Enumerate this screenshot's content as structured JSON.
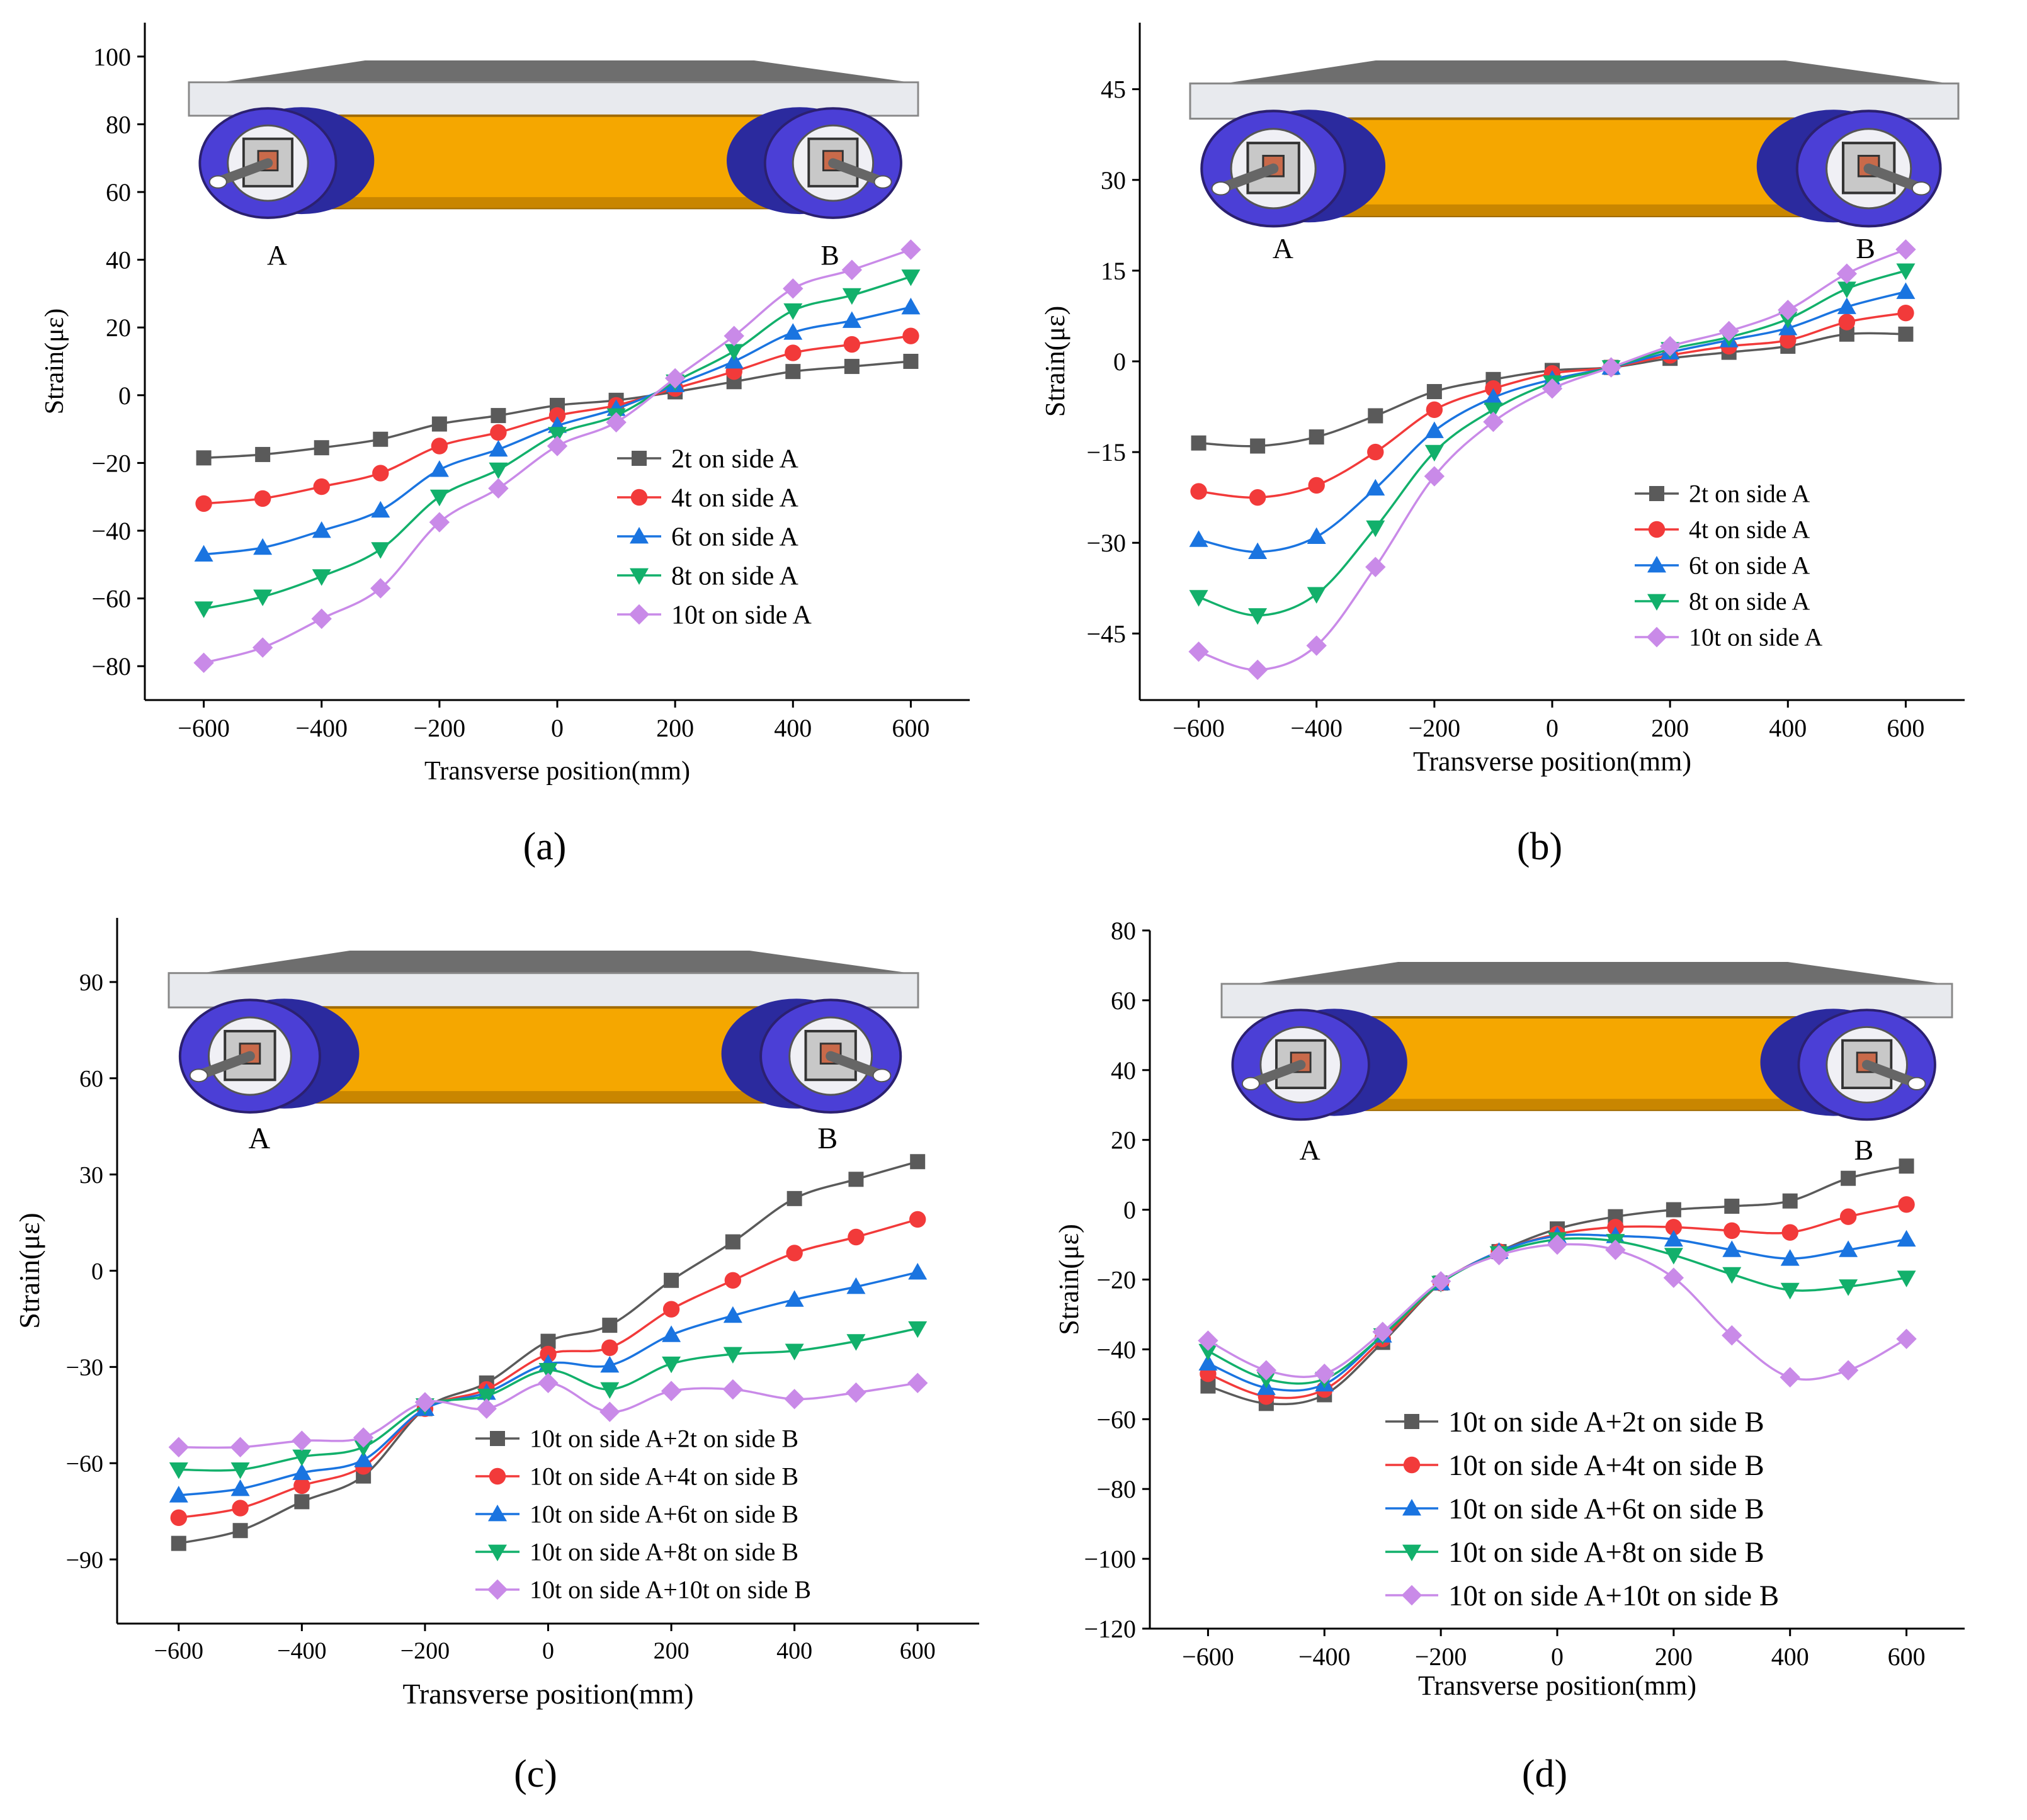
{
  "colors": {
    "s1": "#5a5a5a",
    "s2": "#f23a3a",
    "s3": "#1a74e0",
    "s4": "#12b06b",
    "s5": "#c98ae8",
    "axis": "#000000",
    "plate": "#e8eaee",
    "beam": "#f5a700",
    "wheel_outer": "#4b3fd6",
    "wheel_inner": "#2b2a9e",
    "hub": "#c8c8c8"
  },
  "chart_data": [
    {
      "type": "line",
      "panel_label": "(a)",
      "xlabel": "Transverse position(mm)",
      "ylabel": "Strain(με)",
      "xlim": [
        -700,
        700
      ],
      "ylim": [
        -90,
        110
      ],
      "xticks": [
        -600,
        -400,
        -200,
        0,
        200,
        400,
        600
      ],
      "yticks": [
        -80,
        -60,
        -40,
        -20,
        0,
        20,
        40,
        60,
        80,
        100
      ],
      "xtick_labels": [
        "−600",
        "−400",
        "−200",
        "0",
        "200",
        "400",
        "600"
      ],
      "ytick_labels": [
        "−80",
        "−60",
        "−40",
        "−20",
        "0",
        "20",
        "40",
        "60",
        "80",
        "100"
      ],
      "inset_labels": {
        "left": "A",
        "right": "B"
      },
      "legend_position": "center-right",
      "x": [
        -600,
        -500,
        -400,
        -300,
        -200,
        -100,
        0,
        100,
        200,
        300,
        400,
        500,
        600
      ],
      "series": [
        {
          "name": "2t   on side A",
          "marker": "square",
          "values": [
            -18.5,
            -17.5,
            -15.5,
            -13,
            -8.5,
            -6,
            -3,
            -1.5,
            1,
            4,
            7,
            8.5,
            10
          ]
        },
        {
          "name": "4t   on side A",
          "marker": "circle",
          "values": [
            -32,
            -30.5,
            -27,
            -23,
            -15,
            -11,
            -6,
            -3,
            2,
            7,
            12.5,
            15,
            17.5
          ]
        },
        {
          "name": "6t   on side A",
          "marker": "triangle-up",
          "values": [
            -47,
            -45,
            -40,
            -34,
            -22,
            -16,
            -9,
            -4,
            3,
            10,
            18.5,
            22,
            26
          ]
        },
        {
          "name": "8t   on side A",
          "marker": "triangle-down",
          "values": [
            -63,
            -59.5,
            -53.5,
            -45.5,
            -30,
            -22,
            -11.5,
            -6,
            4,
            13,
            25,
            29.5,
            35
          ]
        },
        {
          "name": "10t on side A",
          "marker": "diamond",
          "values": [
            -79,
            -74.5,
            -66,
            -57,
            -37.5,
            -27.5,
            -15,
            -8,
            5,
            17.5,
            31.5,
            37,
            43
          ]
        }
      ]
    },
    {
      "type": "line",
      "panel_label": "(b)",
      "xlabel": "Transverse position(mm)",
      "ylabel": "Strain(με)",
      "xlim": [
        -700,
        700
      ],
      "ylim": [
        -56,
        56
      ],
      "xticks": [
        -600,
        -400,
        -200,
        0,
        200,
        400,
        600
      ],
      "yticks": [
        -45,
        -30,
        -15,
        0,
        15,
        30,
        45
      ],
      "xtick_labels": [
        "−600",
        "−400",
        "−200",
        "0",
        "200",
        "400",
        "600"
      ],
      "ytick_labels": [
        "−45",
        "−30",
        "−15",
        "0",
        "15",
        "30",
        "45"
      ],
      "inset_labels": {
        "left": "A",
        "right": "B"
      },
      "legend_position": "bottom-right",
      "x": [
        -600,
        -500,
        -400,
        -300,
        -200,
        -100,
        0,
        100,
        200,
        300,
        400,
        500,
        600
      ],
      "series": [
        {
          "name": "2t   on side A",
          "marker": "square",
          "values": [
            -13.5,
            -14,
            -12.5,
            -9,
            -5,
            -3,
            -1.5,
            -1,
            0.5,
            1.5,
            2.5,
            4.5,
            4.5
          ]
        },
        {
          "name": "4t   on side A",
          "marker": "circle",
          "values": [
            -21.5,
            -22.5,
            -20.5,
            -15,
            -8,
            -4.5,
            -2,
            -1,
            1,
            2.5,
            3.5,
            6.5,
            8
          ]
        },
        {
          "name": "6t   on side A",
          "marker": "triangle-up",
          "values": [
            -29.5,
            -31.5,
            -29,
            -21,
            -11.5,
            -6,
            -3,
            -1,
            1.5,
            3.5,
            5.5,
            9,
            11.5
          ]
        },
        {
          "name": "8t   on side A",
          "marker": "triangle-down",
          "values": [
            -39,
            -42,
            -38.5,
            -27.5,
            -15,
            -8,
            -3.5,
            -1,
            2,
            4,
            7,
            12,
            15
          ]
        },
        {
          "name": "10t on side A",
          "marker": "diamond",
          "values": [
            -48,
            -51,
            -47,
            -34,
            -19,
            -10,
            -4.5,
            -1,
            2.5,
            5,
            8.5,
            14.5,
            18.5
          ]
        }
      ]
    },
    {
      "type": "line",
      "panel_label": "(c)",
      "xlabel": "Transverse position(mm)",
      "ylabel": "Strain(με)",
      "xlim": [
        -700,
        700
      ],
      "ylim": [
        -110,
        110
      ],
      "xticks": [
        -600,
        -400,
        -200,
        0,
        200,
        400,
        600
      ],
      "yticks": [
        -90,
        -60,
        -30,
        0,
        30,
        60,
        90
      ],
      "xtick_labels": [
        "−600",
        "−400",
        "−200",
        "0",
        "200",
        "400",
        "600"
      ],
      "ytick_labels": [
        "−90",
        "−60",
        "−30",
        "0",
        "30",
        "60",
        "90"
      ],
      "inset_labels": {
        "left": "A",
        "right": "B"
      },
      "legend_position": "bottom-right",
      "x": [
        -600,
        -500,
        -400,
        -300,
        -200,
        -100,
        0,
        100,
        200,
        300,
        400,
        500,
        600
      ],
      "series": [
        {
          "name": "10t on side A+2t   on side B",
          "marker": "square",
          "values": [
            -85,
            -81,
            -72,
            -64,
            -43,
            -35,
            -22,
            -17,
            -3,
            9,
            22.5,
            28.5,
            34
          ]
        },
        {
          "name": "10t on side A+4t   on side B",
          "marker": "circle",
          "values": [
            -77,
            -74,
            -67,
            -61,
            -43,
            -37,
            -26,
            -24,
            -12,
            -3,
            5.5,
            10.5,
            16
          ]
        },
        {
          "name": "10t on side A+6t   on side B",
          "marker": "triangle-up",
          "values": [
            -70,
            -68,
            -63,
            -59,
            -43,
            -38,
            -29,
            -29.5,
            -20,
            -14,
            -9,
            -5,
            -0.5
          ]
        },
        {
          "name": "10t on side A+8t   on side B",
          "marker": "triangle-down",
          "values": [
            -62,
            -62,
            -58,
            -55,
            -42,
            -39,
            -31,
            -37,
            -29,
            -26,
            -25,
            -22,
            -18
          ]
        },
        {
          "name": "10t on side A+10t on side B",
          "marker": "diamond",
          "values": [
            -55,
            -55,
            -53,
            -52,
            -41,
            -43,
            -35,
            -44,
            -37.5,
            -37,
            -40,
            -38,
            -35
          ]
        }
      ]
    },
    {
      "type": "line",
      "panel_label": "(d)",
      "xlabel": "Transverse position(mm)",
      "ylabel": "Strain(με)",
      "xlim": [
        -700,
        700
      ],
      "ylim": [
        -120,
        80
      ],
      "xticks": [
        -600,
        -400,
        -200,
        0,
        200,
        400,
        600
      ],
      "yticks": [
        -120,
        -100,
        -80,
        -60,
        -40,
        -20,
        0,
        20,
        40,
        60,
        80
      ],
      "xtick_labels": [
        "−600",
        "−400",
        "−200",
        "0",
        "200",
        "400",
        "600"
      ],
      "ytick_labels": [
        "−120",
        "−100",
        "−80",
        "−60",
        "−40",
        "−20",
        "0",
        "20",
        "40",
        "60",
        "80"
      ],
      "inset_labels": {
        "left": "A",
        "right": "B"
      },
      "legend_position": "bottom-center",
      "x": [
        -600,
        -500,
        -400,
        -300,
        -200,
        -100,
        0,
        100,
        200,
        300,
        400,
        500,
        600
      ],
      "series": [
        {
          "name": "10t on side A+2t   on side B",
          "marker": "square",
          "values": [
            -50.5,
            -55.5,
            -53,
            -38,
            -21,
            -12,
            -5.5,
            -2,
            0,
            1,
            2.5,
            9,
            12.5
          ]
        },
        {
          "name": "10t on side A+4t   on side B",
          "marker": "circle",
          "values": [
            -47,
            -53.5,
            -51.5,
            -37,
            -21,
            -12,
            -7,
            -5,
            -5,
            -6,
            -6.5,
            -2,
            1.5
          ]
        },
        {
          "name": "10t on side A+6t   on side B",
          "marker": "triangle-up",
          "values": [
            -44,
            -51,
            -50,
            -36,
            -21,
            -12,
            -7.5,
            -7.5,
            -8.5,
            -11.5,
            -14,
            -11.5,
            -8.5
          ]
        },
        {
          "name": "10t on side A+8t   on side B",
          "marker": "triangle-down",
          "values": [
            -40.5,
            -48.5,
            -48.5,
            -36,
            -21,
            -12.5,
            -8.5,
            -9,
            -13,
            -18.5,
            -23,
            -22,
            -19.5
          ]
        },
        {
          "name": "10t on side A+10t on side B",
          "marker": "diamond",
          "values": [
            -37.5,
            -46,
            -47,
            -35,
            -20.5,
            -13,
            -10,
            -11.5,
            -19.5,
            -36,
            -48,
            -46,
            -37
          ]
        }
      ]
    }
  ]
}
